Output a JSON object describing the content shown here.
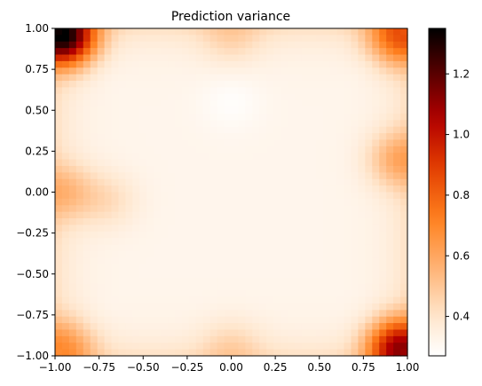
{
  "chart_data": {
    "type": "heatmap",
    "title": "Prediction variance",
    "xlim": [
      -1.0,
      1.0
    ],
    "ylim": [
      -1.0,
      1.0
    ],
    "xticks": [
      "−1.00",
      "−0.75",
      "−0.50",
      "−0.25",
      "0.00",
      "0.25",
      "0.50",
      "0.75",
      "1.00"
    ],
    "yticks": [
      "1.00",
      "0.75",
      "0.50",
      "0.25",
      "0.00",
      "−0.25",
      "−0.50",
      "−0.75",
      "−1.00"
    ],
    "xtick_values": [
      -1.0,
      -0.75,
      -0.5,
      -0.25,
      0.0,
      0.25,
      0.5,
      0.75,
      1.0
    ],
    "ytick_values": [
      1.0,
      0.75,
      0.5,
      0.25,
      0.0,
      -0.25,
      -0.5,
      -0.75,
      -1.0
    ],
    "grid": false,
    "colormap": "gist_heat_r",
    "colorbar": {
      "vmin": 0.27,
      "vmax": 1.35,
      "ticks": [
        "0.4",
        "0.6",
        "0.8",
        "1.0",
        "1.2"
      ],
      "tick_values": [
        0.4,
        0.6,
        0.8,
        1.0,
        1.2
      ]
    },
    "variance_field": {
      "baseline": 0.32,
      "description_points": [
        {
          "x": -0.95,
          "y": 0.95,
          "value": 1.3
        },
        {
          "x": 0.95,
          "y": 0.95,
          "value": 0.78
        },
        {
          "x": 0.95,
          "y": -0.95,
          "value": 1.05
        },
        {
          "x": -0.95,
          "y": -0.95,
          "value": 0.62
        },
        {
          "x": -0.95,
          "y": 0.0,
          "value": 0.5
        },
        {
          "x": 0.95,
          "y": 0.2,
          "value": 0.55
        },
        {
          "x": 0.0,
          "y": 0.95,
          "value": 0.42
        },
        {
          "x": 0.0,
          "y": -0.95,
          "value": 0.42
        },
        {
          "x": -0.7,
          "y": -0.05,
          "value": 0.42
        },
        {
          "x": 0.0,
          "y": 0.55,
          "value": 0.28
        }
      ]
    }
  }
}
